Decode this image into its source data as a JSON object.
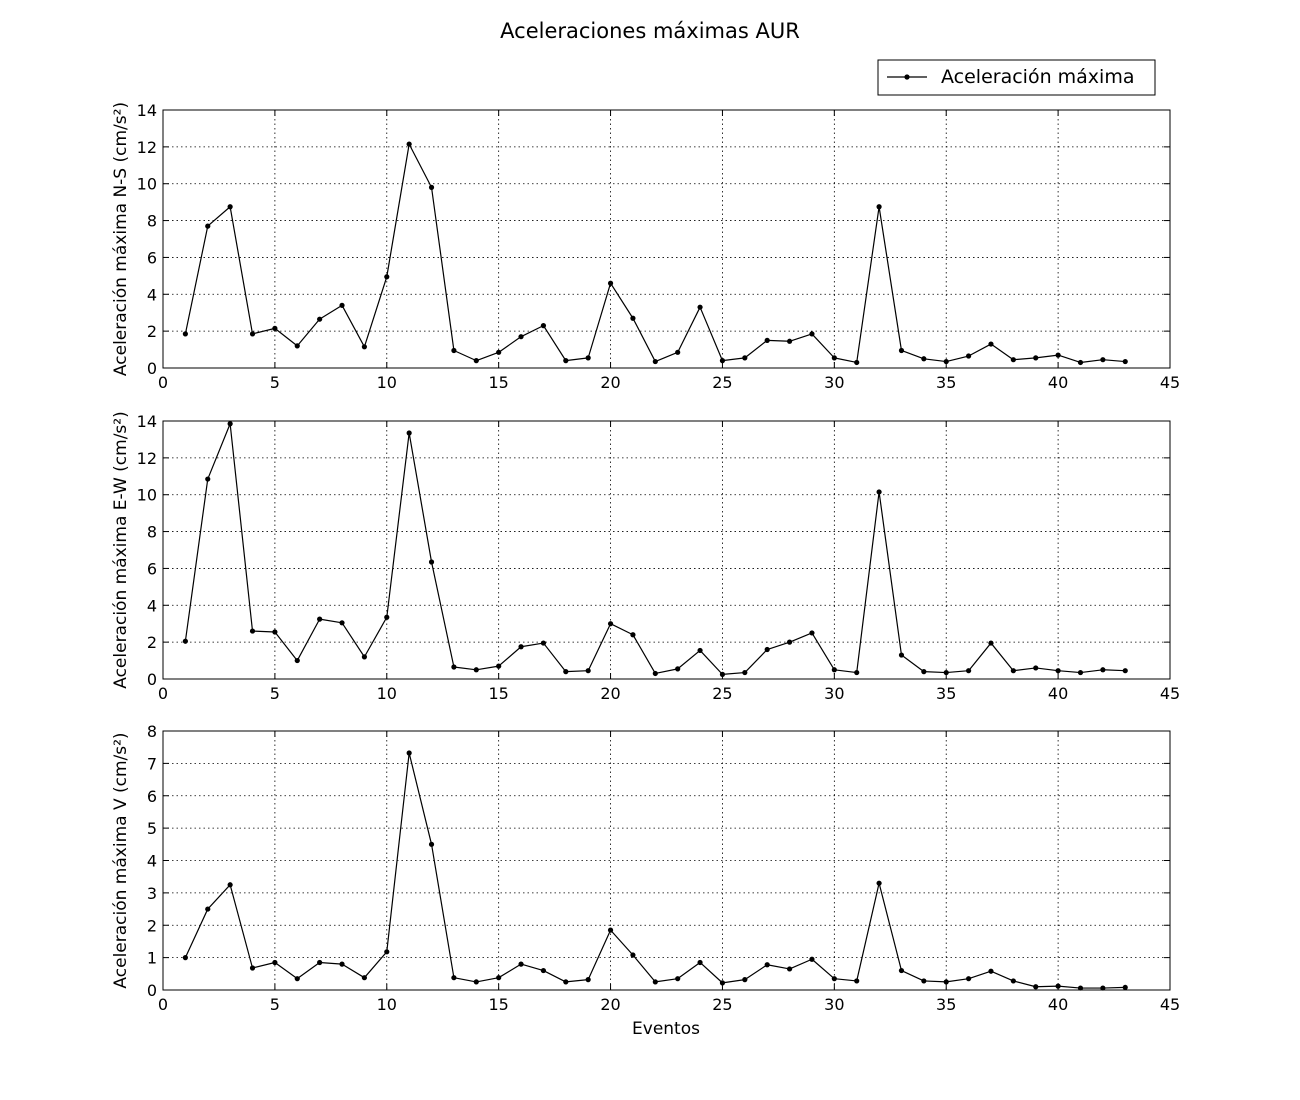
{
  "chart_data": {
    "type": "line",
    "title": "Aceleraciones máximas AUR",
    "legend": {
      "label": "Aceleración máxima",
      "placement": "top-right"
    },
    "grid": true,
    "line_color": "#000000",
    "x": [
      1,
      2,
      3,
      4,
      5,
      6,
      7,
      8,
      9,
      10,
      11,
      12,
      13,
      14,
      15,
      16,
      17,
      18,
      19,
      20,
      21,
      22,
      23,
      24,
      25,
      26,
      27,
      28,
      29,
      30,
      31,
      32,
      33,
      34,
      35,
      36,
      37,
      38,
      39,
      40,
      41,
      42,
      43
    ],
    "xlim": [
      0,
      45
    ],
    "xticks": [
      "0",
      "5",
      "10",
      "15",
      "20",
      "25",
      "30",
      "35",
      "40",
      "45"
    ],
    "xlabel": "Eventos",
    "panels": [
      {
        "ylabel": "Aceleración máxima N-S (cm/s²)",
        "ylim": [
          0,
          14
        ],
        "yticks": [
          "0",
          "2",
          "4",
          "6",
          "8",
          "10",
          "12",
          "14"
        ],
        "values": [
          1.85,
          7.7,
          8.75,
          1.85,
          2.15,
          1.2,
          2.65,
          3.4,
          1.15,
          4.95,
          12.15,
          9.8,
          0.95,
          0.4,
          0.85,
          1.7,
          2.3,
          0.4,
          0.55,
          4.6,
          2.7,
          0.35,
          0.85,
          3.3,
          0.4,
          0.55,
          1.5,
          1.45,
          1.85,
          0.55,
          0.3,
          8.75,
          0.95,
          0.5,
          0.35,
          0.65,
          1.3,
          0.45,
          0.55,
          0.7,
          0.3,
          0.45,
          0.35
        ]
      },
      {
        "ylabel": "Aceleración máxima E-W (cm/s²)",
        "ylim": [
          0,
          14
        ],
        "yticks": [
          "0",
          "2",
          "4",
          "6",
          "8",
          "10",
          "12",
          "14"
        ],
        "values": [
          2.05,
          10.85,
          13.85,
          2.6,
          2.55,
          1.0,
          3.25,
          3.05,
          1.2,
          3.35,
          13.35,
          6.35,
          0.65,
          0.5,
          0.7,
          1.75,
          1.95,
          0.4,
          0.45,
          3.0,
          2.4,
          0.3,
          0.55,
          1.55,
          0.25,
          0.35,
          1.6,
          2.0,
          2.5,
          0.5,
          0.35,
          10.15,
          1.3,
          0.4,
          0.35,
          0.45,
          1.95,
          0.45,
          0.6,
          0.45,
          0.35,
          0.5,
          0.45
        ]
      },
      {
        "ylabel": "Aceleración máxima V (cm/s²)",
        "ylim": [
          0,
          8
        ],
        "yticks": [
          "0",
          "1",
          "2",
          "3",
          "4",
          "5",
          "6",
          "7",
          "8"
        ],
        "values": [
          1.0,
          2.5,
          3.25,
          0.68,
          0.85,
          0.35,
          0.85,
          0.8,
          0.38,
          1.18,
          7.32,
          4.5,
          0.38,
          0.25,
          0.38,
          0.8,
          0.6,
          0.25,
          0.32,
          1.85,
          1.08,
          0.25,
          0.35,
          0.85,
          0.22,
          0.32,
          0.78,
          0.65,
          0.95,
          0.35,
          0.28,
          3.3,
          0.6,
          0.28,
          0.25,
          0.35,
          0.58,
          0.28,
          0.1,
          0.12,
          0.06,
          0.06,
          0.08
        ]
      }
    ]
  }
}
